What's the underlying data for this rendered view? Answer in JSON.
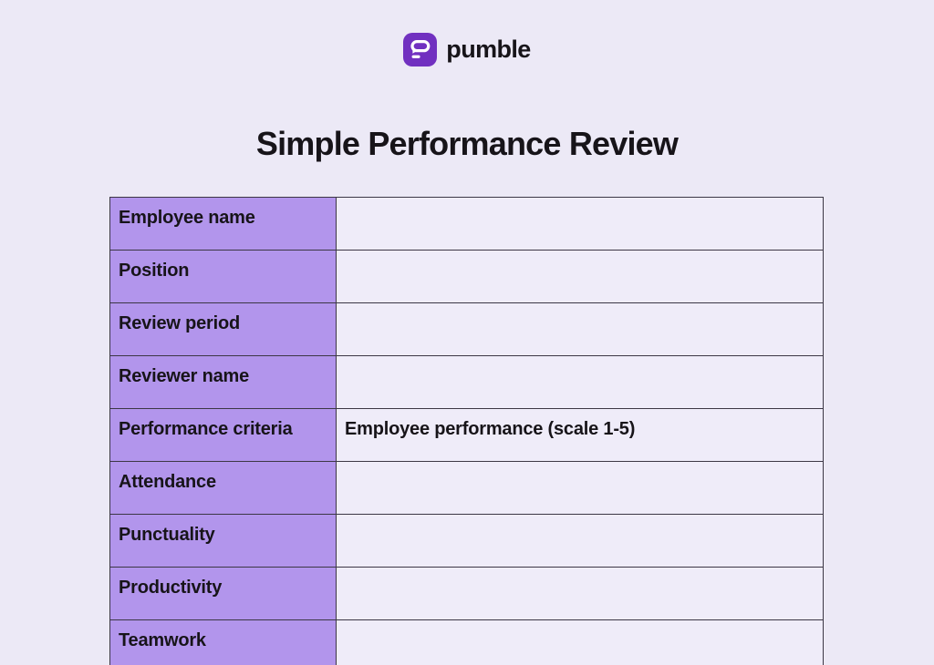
{
  "theme": {
    "page_bg": "#ece9f6",
    "text_dark": "#171419",
    "border_color": "#3c3745",
    "label_cell_bg": "#b295ec",
    "value_cell_bg": "#efecf9",
    "brand_icon_bg": "#7130c0",
    "brand_icon_glyph": "#ffffff"
  },
  "brand": {
    "name": "pumble",
    "icon": "pumble-speech-bubble-icon"
  },
  "title": "Simple Performance Review",
  "table": {
    "rows": [
      {
        "label": "Employee name",
        "value": ""
      },
      {
        "label": "Position",
        "value": ""
      },
      {
        "label": "Review period",
        "value": ""
      },
      {
        "label": "Reviewer name",
        "value": ""
      },
      {
        "label": "Performance criteria",
        "value": "Employee performance (scale 1-5)"
      },
      {
        "label": "Attendance",
        "value": ""
      },
      {
        "label": "Punctuality",
        "value": ""
      },
      {
        "label": "Productivity",
        "value": ""
      },
      {
        "label": "Teamwork",
        "value": ""
      }
    ]
  }
}
